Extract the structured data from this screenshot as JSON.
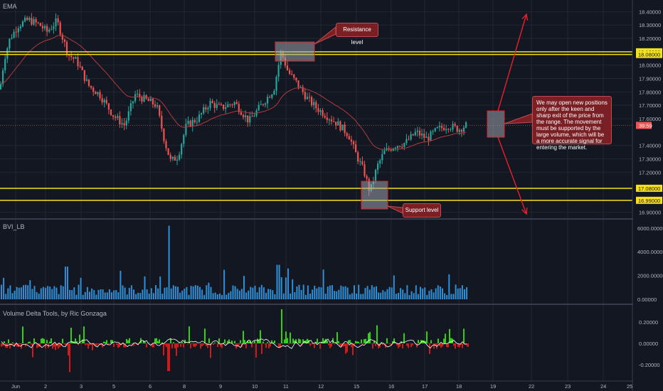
{
  "colors": {
    "background": "#131722",
    "grid": "#222733",
    "bull": "#26a69a",
    "bear": "#ef5350",
    "ema": "#b23a3a",
    "level": "#f5e11a",
    "volume": "#2f8fd6",
    "delta_pos": "#33d017",
    "delta_neg": "#d21a1a",
    "arrow": "#e8202a",
    "callout_bg": "#7a1f24",
    "price_badge": "#ef5350"
  },
  "panes": {
    "main": {
      "indicator_label": "EMA"
    },
    "volume": {
      "indicator_label": "BVI_LB"
    },
    "delta": {
      "indicator_label": "Volume Delta Tools, by Ric Gonzaga"
    }
  },
  "annotations": {
    "resistance": "Resistance level",
    "support": "Support level",
    "note": "We may open new positions only after the keen and sharp exit of the price from the range. The movement must be supported by the large volume, which will be a more accurate signal for entering the market."
  },
  "price_axis": {
    "ticks": [
      "18.40000",
      "18.30000",
      "18.20000",
      "18.00000",
      "17.90000",
      "17.80000",
      "17.70000",
      "17.60000",
      "17.40000",
      "17.30000",
      "17.20000",
      "16.90000"
    ],
    "levels": [
      "18.10000",
      "18.08000",
      "17.08000",
      "16.99000"
    ],
    "current_price": "17.55000",
    "current_countdown": "39:59"
  },
  "volume_axis": {
    "ticks": [
      "6000.00000",
      "4000.00000",
      "2000.00000",
      "0.00000"
    ]
  },
  "delta_axis": {
    "ticks": [
      "0.20000",
      "0.00000",
      "-0.20000"
    ]
  },
  "time_axis": {
    "ticks": [
      "Jun",
      "2",
      "3",
      "5",
      "6",
      "8",
      "9",
      "10",
      "11",
      "12",
      "15",
      "16",
      "17",
      "18",
      "19",
      "22",
      "23",
      "24",
      "25"
    ]
  },
  "chart_data": {
    "type": "candlestick",
    "series": [
      {
        "name": "EMA"
      }
    ],
    "ylim": [
      16.9,
      18.45
    ],
    "horizontal_levels": [
      18.1,
      18.08,
      17.08,
      16.99
    ],
    "last_price": 17.55
  }
}
